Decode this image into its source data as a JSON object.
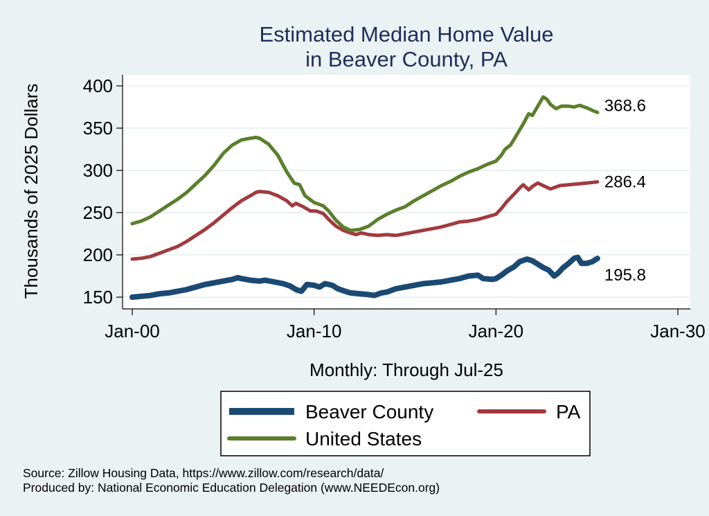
{
  "chart_data": {
    "type": "line",
    "title_lines": [
      "Estimated Median Home Value",
      "in Beaver County, PA"
    ],
    "xlabel": "Monthly: Through Jul-25",
    "ylabel": "Thousands of 2025 Dollars",
    "xlim": [
      2000,
      2030
    ],
    "ylim": [
      143,
      405
    ],
    "x_ticks": [
      {
        "value": 2000,
        "label": "Jan-00"
      },
      {
        "value": 2010,
        "label": "Jan-10"
      },
      {
        "value": 2020,
        "label": "Jan-20"
      },
      {
        "value": 2030,
        "label": "Jan-30"
      }
    ],
    "y_ticks": [
      150,
      200,
      250,
      300,
      350,
      400
    ],
    "grid": true,
    "legend_position": "bottom",
    "series": [
      {
        "name": "Beaver County",
        "color": "#1a4a73",
        "end_label": "195.8",
        "points": [
          [
            2000,
            150
          ],
          [
            2000.5,
            151
          ],
          [
            2001,
            152
          ],
          [
            2001.5,
            154
          ],
          [
            2002,
            155
          ],
          [
            2002.5,
            157
          ],
          [
            2003,
            159
          ],
          [
            2003.5,
            162
          ],
          [
            2004,
            165
          ],
          [
            2004.5,
            167
          ],
          [
            2005,
            169
          ],
          [
            2005.5,
            171
          ],
          [
            2005.8,
            173
          ],
          [
            2006,
            172
          ],
          [
            2006.5,
            170
          ],
          [
            2007,
            169
          ],
          [
            2007.3,
            170
          ],
          [
            2007.8,
            168
          ],
          [
            2008.3,
            166
          ],
          [
            2008.7,
            163
          ],
          [
            2009,
            159
          ],
          [
            2009.3,
            157
          ],
          [
            2009.6,
            165
          ],
          [
            2010,
            164
          ],
          [
            2010.3,
            162
          ],
          [
            2010.6,
            166
          ],
          [
            2011,
            164
          ],
          [
            2011.3,
            160
          ],
          [
            2011.7,
            157
          ],
          [
            2012,
            155
          ],
          [
            2012.5,
            154
          ],
          [
            2013,
            153
          ],
          [
            2013.3,
            152
          ],
          [
            2013.7,
            155
          ],
          [
            2014,
            156
          ],
          [
            2014.5,
            160
          ],
          [
            2015,
            162
          ],
          [
            2015.5,
            164
          ],
          [
            2016,
            166
          ],
          [
            2016.5,
            167
          ],
          [
            2017,
            168
          ],
          [
            2017.5,
            170
          ],
          [
            2018,
            172
          ],
          [
            2018.5,
            175
          ],
          [
            2019,
            176
          ],
          [
            2019.3,
            172
          ],
          [
            2019.8,
            171
          ],
          [
            2020,
            172
          ],
          [
            2020.3,
            176
          ],
          [
            2020.6,
            181
          ],
          [
            2021,
            186
          ],
          [
            2021.3,
            192
          ],
          [
            2021.7,
            195
          ],
          [
            2022,
            193
          ],
          [
            2022.3,
            189
          ],
          [
            2022.6,
            185
          ],
          [
            2022.9,
            182
          ],
          [
            2023.2,
            175
          ],
          [
            2023.4,
            178
          ],
          [
            2023.7,
            185
          ],
          [
            2024,
            190
          ],
          [
            2024.3,
            196
          ],
          [
            2024.5,
            197
          ],
          [
            2024.7,
            190
          ],
          [
            2025,
            190
          ],
          [
            2025.3,
            192
          ],
          [
            2025.58,
            195.8
          ]
        ]
      },
      {
        "name": "PA",
        "color": "#a13a3e",
        "end_label": "286.4",
        "points": [
          [
            2000,
            195
          ],
          [
            2000.5,
            196
          ],
          [
            2001,
            198
          ],
          [
            2001.5,
            202
          ],
          [
            2002,
            206
          ],
          [
            2002.5,
            210
          ],
          [
            2003,
            216
          ],
          [
            2003.5,
            223
          ],
          [
            2004,
            230
          ],
          [
            2004.5,
            238
          ],
          [
            2005,
            247
          ],
          [
            2005.5,
            256
          ],
          [
            2006,
            264
          ],
          [
            2006.5,
            270
          ],
          [
            2006.8,
            274
          ],
          [
            2007,
            275
          ],
          [
            2007.5,
            274
          ],
          [
            2008,
            270
          ],
          [
            2008.5,
            264
          ],
          [
            2008.8,
            258
          ],
          [
            2009,
            261
          ],
          [
            2009.4,
            257
          ],
          [
            2009.8,
            252
          ],
          [
            2010.1,
            252
          ],
          [
            2010.5,
            249
          ],
          [
            2010.8,
            242
          ],
          [
            2011.2,
            234
          ],
          [
            2011.6,
            229
          ],
          [
            2012,
            226
          ],
          [
            2012.3,
            224
          ],
          [
            2012.6,
            226
          ],
          [
            2013,
            224
          ],
          [
            2013.5,
            223
          ],
          [
            2014,
            224
          ],
          [
            2014.5,
            223
          ],
          [
            2015,
            225
          ],
          [
            2015.5,
            227
          ],
          [
            2016,
            229
          ],
          [
            2016.5,
            231
          ],
          [
            2017,
            233
          ],
          [
            2017.5,
            236
          ],
          [
            2018,
            239
          ],
          [
            2018.5,
            240
          ],
          [
            2019,
            242
          ],
          [
            2019.5,
            245
          ],
          [
            2020,
            248
          ],
          [
            2020.3,
            255
          ],
          [
            2020.6,
            263
          ],
          [
            2021,
            272
          ],
          [
            2021.3,
            279
          ],
          [
            2021.5,
            283
          ],
          [
            2021.8,
            277
          ],
          [
            2022,
            281
          ],
          [
            2022.3,
            285
          ],
          [
            2022.6,
            282
          ],
          [
            2023,
            278
          ],
          [
            2023.5,
            282
          ],
          [
            2024,
            283
          ],
          [
            2024.5,
            284
          ],
          [
            2025,
            285
          ],
          [
            2025.58,
            286.4
          ]
        ]
      },
      {
        "name": "United States",
        "color": "#5b7f2c",
        "end_label": "368.6",
        "points": [
          [
            2000,
            237
          ],
          [
            2000.5,
            240
          ],
          [
            2001,
            245
          ],
          [
            2001.5,
            252
          ],
          [
            2002,
            259
          ],
          [
            2002.5,
            266
          ],
          [
            2003,
            274
          ],
          [
            2003.5,
            284
          ],
          [
            2004,
            294
          ],
          [
            2004.5,
            306
          ],
          [
            2005,
            320
          ],
          [
            2005.5,
            330
          ],
          [
            2006,
            336
          ],
          [
            2006.5,
            338
          ],
          [
            2006.8,
            339
          ],
          [
            2007,
            338
          ],
          [
            2007.5,
            331
          ],
          [
            2008,
            318
          ],
          [
            2008.5,
            298
          ],
          [
            2008.9,
            285
          ],
          [
            2009.2,
            283
          ],
          [
            2009.5,
            270
          ],
          [
            2010,
            262
          ],
          [
            2010.5,
            258
          ],
          [
            2010.8,
            252
          ],
          [
            2011.2,
            241
          ],
          [
            2011.6,
            233
          ],
          [
            2012,
            229
          ],
          [
            2012.5,
            230
          ],
          [
            2013,
            234
          ],
          [
            2013.5,
            242
          ],
          [
            2014,
            248
          ],
          [
            2014.5,
            253
          ],
          [
            2015,
            257
          ],
          [
            2015.5,
            264
          ],
          [
            2016,
            270
          ],
          [
            2016.5,
            276
          ],
          [
            2017,
            282
          ],
          [
            2017.5,
            287
          ],
          [
            2018,
            293
          ],
          [
            2018.5,
            298
          ],
          [
            2019,
            302
          ],
          [
            2019.5,
            307
          ],
          [
            2020,
            311
          ],
          [
            2020.3,
            318
          ],
          [
            2020.5,
            325
          ],
          [
            2020.8,
            330
          ],
          [
            2021,
            337
          ],
          [
            2021.5,
            355
          ],
          [
            2021.8,
            367
          ],
          [
            2022,
            365
          ],
          [
            2022.3,
            376
          ],
          [
            2022.6,
            387
          ],
          [
            2022.8,
            384
          ],
          [
            2023,
            378
          ],
          [
            2023.3,
            373
          ],
          [
            2023.6,
            376
          ],
          [
            2024,
            376
          ],
          [
            2024.3,
            375
          ],
          [
            2024.6,
            377
          ],
          [
            2025,
            374
          ],
          [
            2025.3,
            371
          ],
          [
            2025.58,
            368.6
          ]
        ]
      }
    ]
  },
  "legend": {
    "items": [
      {
        "label": "Beaver County",
        "color": "#1a4a73"
      },
      {
        "label": "PA",
        "color": "#a13a3e"
      },
      {
        "label": "United States",
        "color": "#5b7f2c"
      }
    ]
  },
  "notes": {
    "source": "Source: Zillow Housing Data, https://www.zillow.com/research/data/",
    "produced_by": "Produced by: National Economic Education Delegation (www.NEEDEcon.org)"
  }
}
